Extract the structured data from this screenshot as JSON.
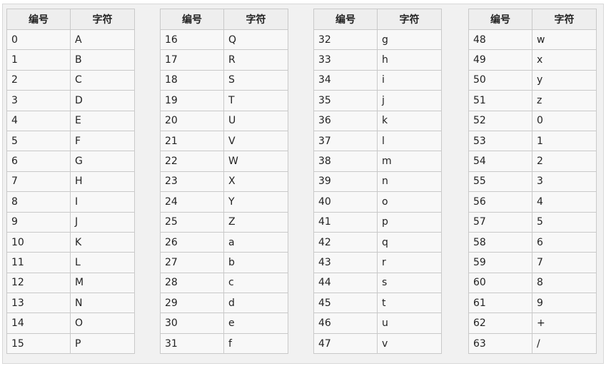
{
  "headers": {
    "code": "编号",
    "char": "字符"
  },
  "groups": [
    {
      "rows": [
        [
          "0",
          "A"
        ],
        [
          "1",
          "B"
        ],
        [
          "2",
          "C"
        ],
        [
          "3",
          "D"
        ],
        [
          "4",
          "E"
        ],
        [
          "5",
          "F"
        ],
        [
          "6",
          "G"
        ],
        [
          "7",
          "H"
        ],
        [
          "8",
          "I"
        ],
        [
          "9",
          "J"
        ],
        [
          "10",
          "K"
        ],
        [
          "11",
          "L"
        ],
        [
          "12",
          "M"
        ],
        [
          "13",
          "N"
        ],
        [
          "14",
          "O"
        ],
        [
          "15",
          "P"
        ]
      ]
    },
    {
      "rows": [
        [
          "16",
          "Q"
        ],
        [
          "17",
          "R"
        ],
        [
          "18",
          "S"
        ],
        [
          "19",
          "T"
        ],
        [
          "20",
          "U"
        ],
        [
          "21",
          "V"
        ],
        [
          "22",
          "W"
        ],
        [
          "23",
          "X"
        ],
        [
          "24",
          "Y"
        ],
        [
          "25",
          "Z"
        ],
        [
          "26",
          "a"
        ],
        [
          "27",
          "b"
        ],
        [
          "28",
          "c"
        ],
        [
          "29",
          "d"
        ],
        [
          "30",
          "e"
        ],
        [
          "31",
          "f"
        ]
      ]
    },
    {
      "rows": [
        [
          "32",
          "g"
        ],
        [
          "33",
          "h"
        ],
        [
          "34",
          "i"
        ],
        [
          "35",
          "j"
        ],
        [
          "36",
          "k"
        ],
        [
          "37",
          "l"
        ],
        [
          "38",
          "m"
        ],
        [
          "39",
          "n"
        ],
        [
          "40",
          "o"
        ],
        [
          "41",
          "p"
        ],
        [
          "42",
          "q"
        ],
        [
          "43",
          "r"
        ],
        [
          "44",
          "s"
        ],
        [
          "45",
          "t"
        ],
        [
          "46",
          "u"
        ],
        [
          "47",
          "v"
        ]
      ]
    },
    {
      "rows": [
        [
          "48",
          "w"
        ],
        [
          "49",
          "x"
        ],
        [
          "50",
          "y"
        ],
        [
          "51",
          "z"
        ],
        [
          "52",
          "0"
        ],
        [
          "53",
          "1"
        ],
        [
          "54",
          "2"
        ],
        [
          "55",
          "3"
        ],
        [
          "56",
          "4"
        ],
        [
          "57",
          "5"
        ],
        [
          "58",
          "6"
        ],
        [
          "59",
          "7"
        ],
        [
          "60",
          "8"
        ],
        [
          "61",
          "9"
        ],
        [
          "62",
          "+"
        ],
        [
          "63",
          "/"
        ]
      ]
    }
  ]
}
